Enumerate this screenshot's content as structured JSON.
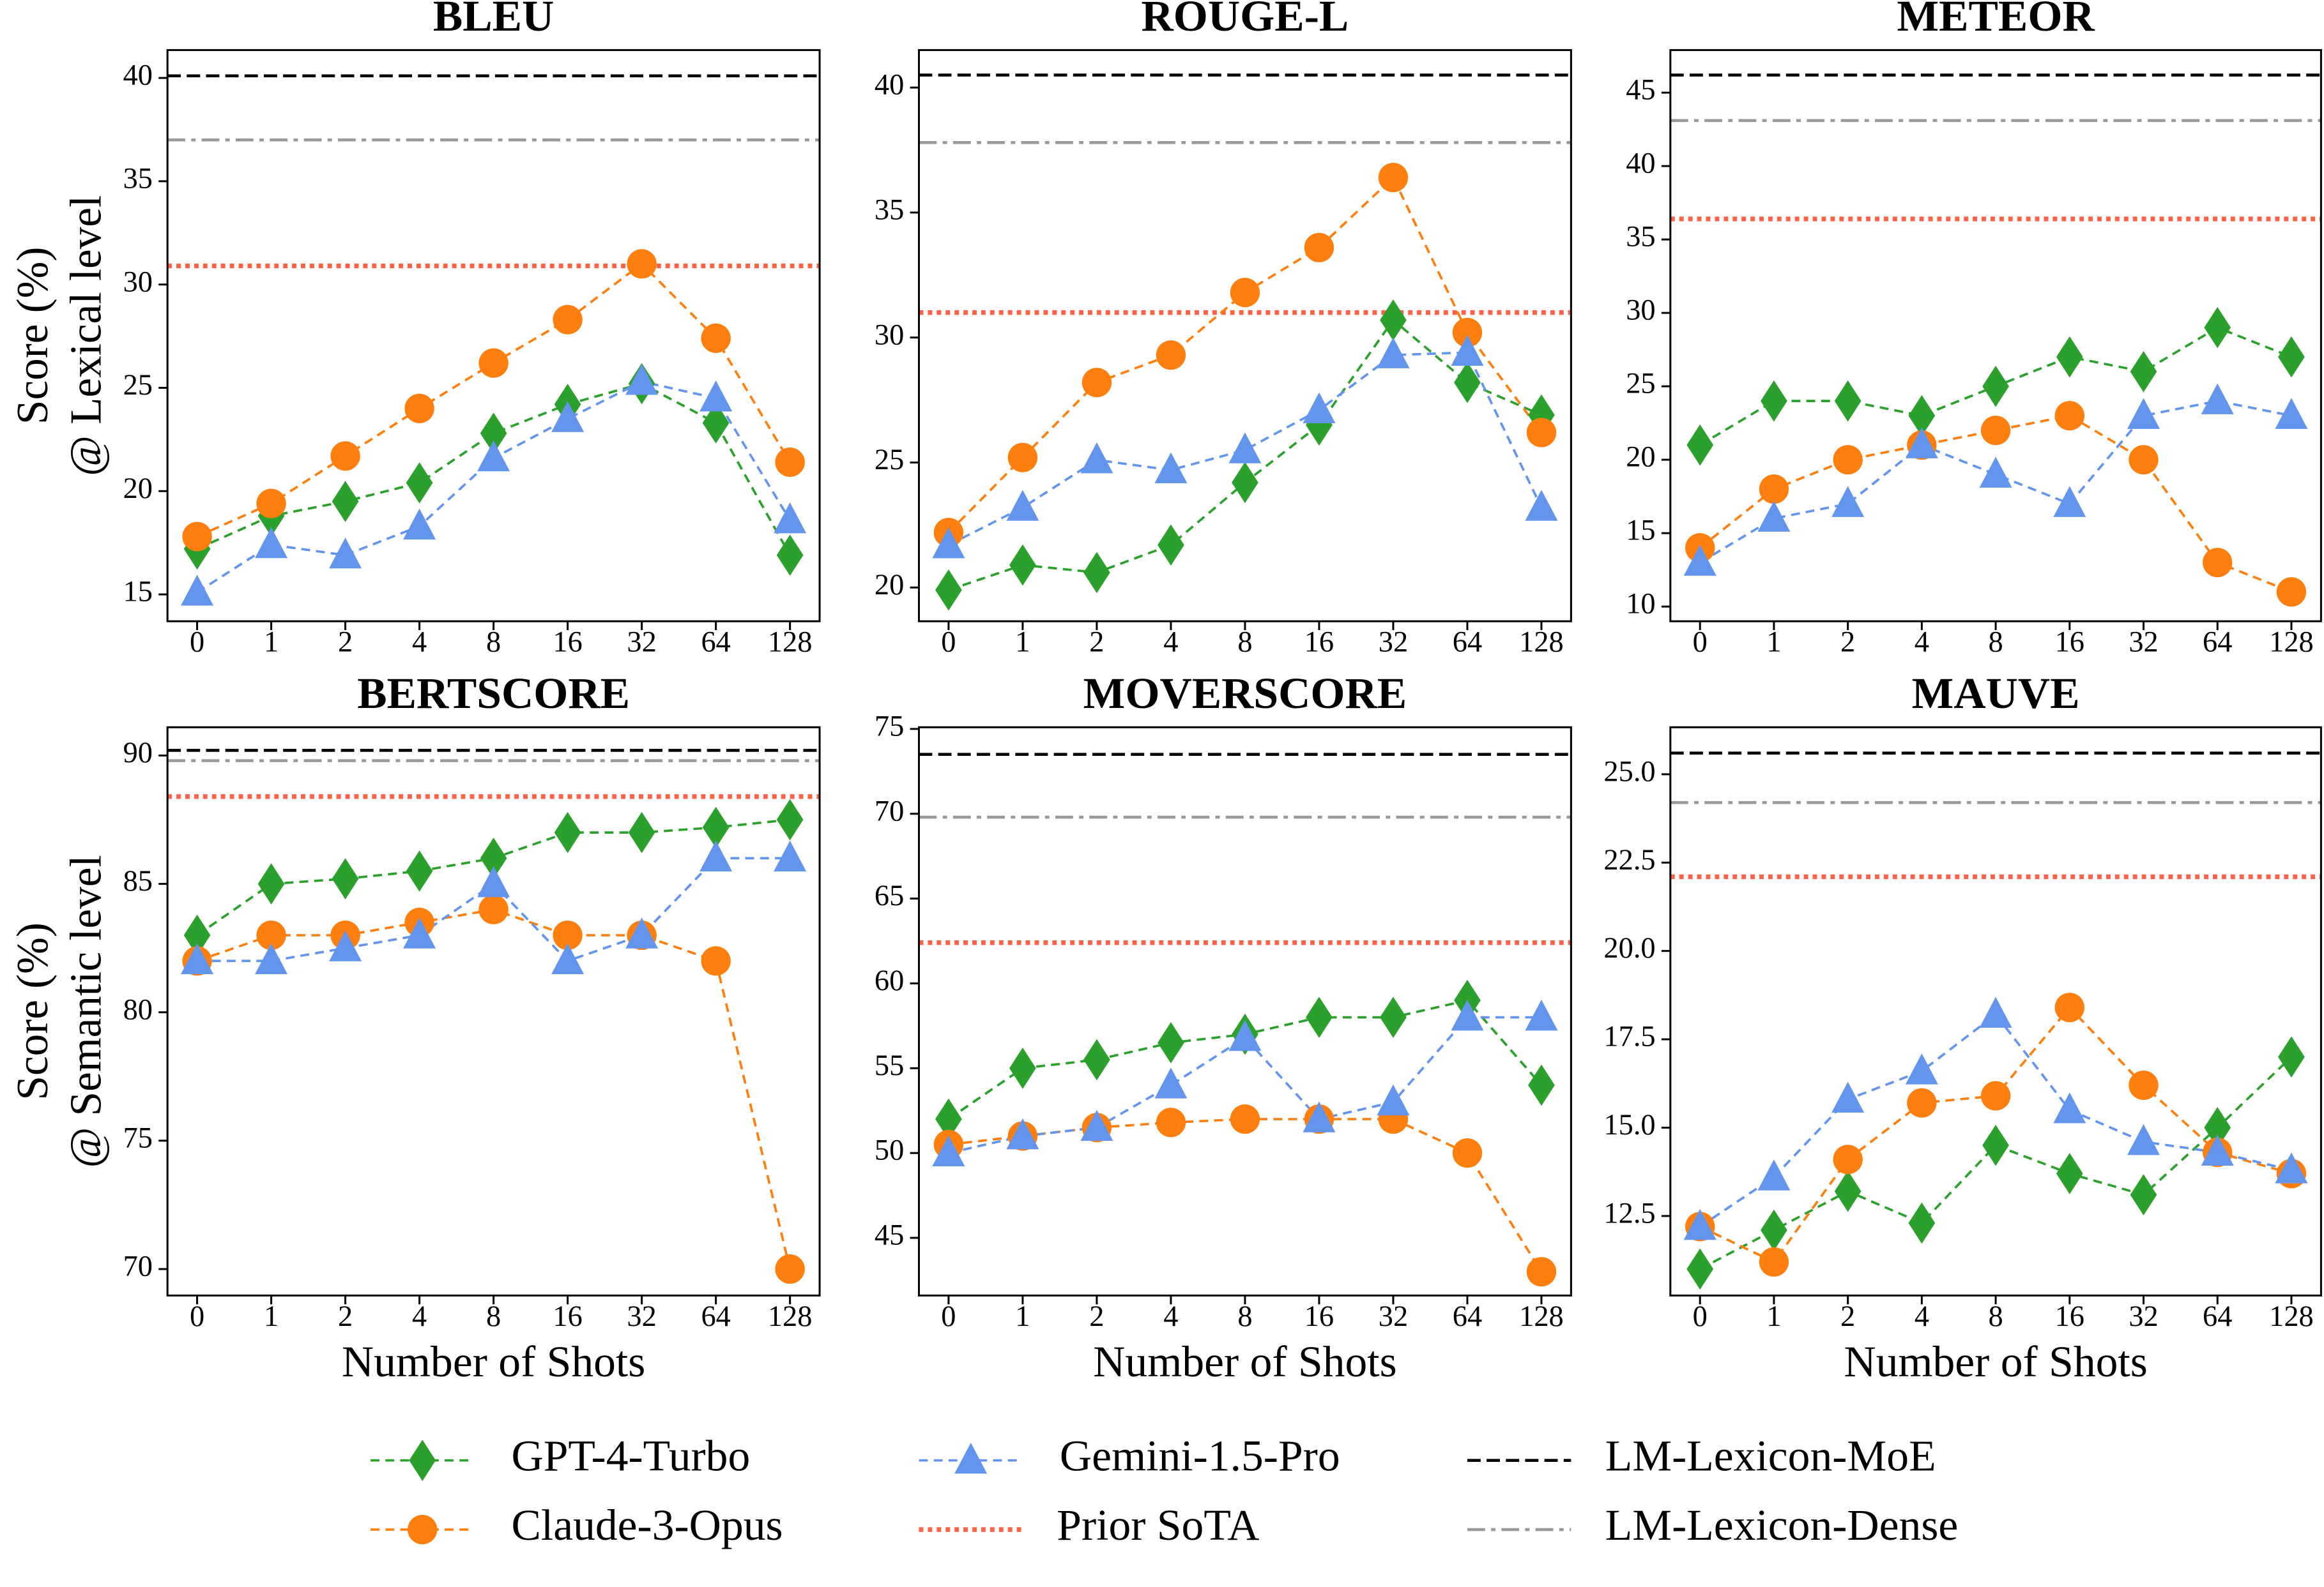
{
  "chart_data": [
    {
      "type": "line",
      "title": "BLEU",
      "y_label": [
        "Score (%)",
        "@ Lexical level"
      ],
      "categories": [
        "0",
        "1",
        "2",
        "4",
        "8",
        "16",
        "32",
        "64",
        "128"
      ],
      "ylim": [
        13.7,
        41.35
      ],
      "yticks": [
        15,
        20,
        25,
        30,
        35,
        40
      ],
      "series": [
        {
          "name": "GPT-4-Turbo",
          "color": "#2ca02c",
          "marker": "diamond",
          "values": [
            17.2,
            18.8,
            19.5,
            20.4,
            22.8,
            24.2,
            25.2,
            23.3,
            16.9
          ]
        },
        {
          "name": "Claude-3-Opus",
          "color": "#ff7f0e",
          "marker": "circle",
          "values": [
            17.8,
            19.4,
            21.7,
            24.0,
            26.2,
            28.3,
            31.0,
            27.4,
            21.4
          ]
        },
        {
          "name": "Gemini-1.5-Pro",
          "color": "#6495ed",
          "marker": "triangle",
          "values": [
            15.1,
            17.4,
            16.9,
            18.3,
            21.6,
            23.5,
            25.3,
            24.5,
            18.6
          ]
        }
      ],
      "reference_lines": [
        {
          "name": "Prior SoTA",
          "color": "#ff6347",
          "style": "dotted",
          "value": 30.9
        },
        {
          "name": "LM-Lexicon-MoE",
          "color": "#000000",
          "style": "dashed",
          "value": 40.1
        },
        {
          "name": "LM-Lexicon-Dense",
          "color": "#999999",
          "style": "dashdot",
          "value": 37.0
        }
      ]
    },
    {
      "type": "line",
      "title": "ROUGE-L",
      "categories": [
        "0",
        "1",
        "2",
        "4",
        "8",
        "16",
        "32",
        "64",
        "128"
      ],
      "ylim": [
        18.65,
        41.5
      ],
      "yticks": [
        20,
        25,
        30,
        35,
        40
      ],
      "series": [
        {
          "name": "GPT-4-Turbo",
          "color": "#2ca02c",
          "marker": "diamond",
          "values": [
            19.9,
            20.9,
            20.6,
            21.7,
            24.2,
            26.5,
            30.7,
            28.2,
            26.9
          ]
        },
        {
          "name": "Claude-3-Opus",
          "color": "#ff7f0e",
          "marker": "circle",
          "values": [
            22.2,
            25.2,
            28.2,
            29.3,
            31.8,
            33.6,
            36.4,
            30.2,
            26.2
          ]
        },
        {
          "name": "Gemini-1.5-Pro",
          "color": "#6495ed",
          "marker": "triangle",
          "values": [
            21.7,
            23.2,
            25.1,
            24.7,
            25.5,
            27.1,
            29.3,
            29.4,
            23.2
          ]
        }
      ],
      "reference_lines": [
        {
          "name": "Prior SoTA",
          "color": "#ff6347",
          "style": "dotted",
          "value": 31.0
        },
        {
          "name": "LM-Lexicon-MoE",
          "color": "#000000",
          "style": "dashed",
          "value": 40.5
        },
        {
          "name": "LM-Lexicon-Dense",
          "color": "#999999",
          "style": "dashdot",
          "value": 37.8
        }
      ]
    },
    {
      "type": "line",
      "title": "METEOR",
      "categories": [
        "0",
        "1",
        "2",
        "4",
        "8",
        "16",
        "32",
        "64",
        "128"
      ],
      "ylim": [
        9.0,
        47.9
      ],
      "yticks": [
        10,
        15,
        20,
        25,
        30,
        35,
        40,
        45
      ],
      "series": [
        {
          "name": "GPT-4-Turbo",
          "color": "#2ca02c",
          "marker": "diamond",
          "values": [
            21,
            24,
            24,
            23,
            25,
            27,
            26,
            29,
            27
          ]
        },
        {
          "name": "Claude-3-Opus",
          "color": "#ff7f0e",
          "marker": "circle",
          "values": [
            14,
            18,
            20,
            21,
            22,
            23,
            20,
            13,
            11
          ]
        },
        {
          "name": "Gemini-1.5-Pro",
          "color": "#6495ed",
          "marker": "triangle",
          "values": [
            13,
            16,
            17,
            21,
            19,
            17,
            23,
            24,
            23
          ]
        }
      ],
      "reference_lines": [
        {
          "name": "Prior SoTA",
          "color": "#ff6347",
          "style": "dotted",
          "value": 36.4
        },
        {
          "name": "LM-Lexicon-MoE",
          "color": "#000000",
          "style": "dashed",
          "value": 46.2
        },
        {
          "name": "LM-Lexicon-Dense",
          "color": "#999999",
          "style": "dashdot",
          "value": 43.1
        }
      ]
    },
    {
      "type": "line",
      "title": "BERTSCORE",
      "y_label": [
        "Score (%)",
        "@ Semantic level"
      ],
      "x_label": "Number of Shots",
      "categories": [
        "0",
        "1",
        "2",
        "4",
        "8",
        "16",
        "32",
        "64",
        "128"
      ],
      "ylim": [
        68.97,
        91.1
      ],
      "yticks": [
        70,
        75,
        80,
        85,
        90
      ],
      "series": [
        {
          "name": "GPT-4-Turbo",
          "color": "#2ca02c",
          "marker": "diamond",
          "values": [
            83,
            85,
            85.2,
            85.5,
            86,
            87,
            87,
            87.2,
            87.5
          ]
        },
        {
          "name": "Claude-3-Opus",
          "color": "#ff7f0e",
          "marker": "circle",
          "values": [
            82,
            83,
            83,
            83.5,
            84,
            83,
            83,
            82,
            70
          ]
        },
        {
          "name": "Gemini-1.5-Pro",
          "color": "#6495ed",
          "marker": "triangle",
          "values": [
            82,
            82,
            82.5,
            83,
            85,
            82,
            83,
            86,
            86
          ]
        }
      ],
      "reference_lines": [
        {
          "name": "Prior SoTA",
          "color": "#ff6347",
          "style": "dotted",
          "value": 88.4
        },
        {
          "name": "LM-Lexicon-MoE",
          "color": "#000000",
          "style": "dashed",
          "value": 90.2
        },
        {
          "name": "LM-Lexicon-Dense",
          "color": "#999999",
          "style": "dashdot",
          "value": 89.8
        }
      ]
    },
    {
      "type": "line",
      "title": "MOVERSCORE",
      "x_label": "Number of Shots",
      "categories": [
        "0",
        "1",
        "2",
        "4",
        "8",
        "16",
        "32",
        "64",
        "128"
      ],
      "ylim": [
        41.6,
        75.1
      ],
      "yticks": [
        45,
        50,
        55,
        60,
        65,
        70,
        75
      ],
      "series": [
        {
          "name": "GPT-4-Turbo",
          "color": "#2ca02c",
          "marker": "diamond",
          "values": [
            52,
            55,
            55.5,
            56.5,
            57,
            58,
            58,
            59,
            54
          ]
        },
        {
          "name": "Claude-3-Opus",
          "color": "#ff7f0e",
          "marker": "circle",
          "values": [
            50.5,
            51,
            51.5,
            51.8,
            52,
            52,
            52,
            50,
            43
          ]
        },
        {
          "name": "Gemini-1.5-Pro",
          "color": "#6495ed",
          "marker": "triangle",
          "values": [
            50,
            51,
            51.5,
            54,
            56.8,
            52,
            53,
            58,
            58
          ]
        }
      ],
      "reference_lines": [
        {
          "name": "Prior SoTA",
          "color": "#ff6347",
          "style": "dotted",
          "value": 62.4
        },
        {
          "name": "LM-Lexicon-MoE",
          "color": "#000000",
          "style": "dashed",
          "value": 73.5
        },
        {
          "name": "LM-Lexicon-Dense",
          "color": "#999999",
          "style": "dashdot",
          "value": 69.8
        }
      ]
    },
    {
      "type": "line",
      "title": "MAUVE",
      "x_label": "Number of Shots",
      "categories": [
        "0",
        "1",
        "2",
        "4",
        "8",
        "16",
        "32",
        "64",
        "128"
      ],
      "ylim": [
        10.25,
        26.33
      ],
      "yticks": [
        12.5,
        {
          "value": 15,
          "label": "15.0"
        },
        17.5,
        {
          "value": 20,
          "label": "20.0"
        },
        22.5,
        {
          "value": 25,
          "label": "25.0"
        }
      ],
      "series": [
        {
          "name": "GPT-4-Turbo",
          "color": "#2ca02c",
          "marker": "diamond",
          "values": [
            11.0,
            12.1,
            13.2,
            12.3,
            14.5,
            13.7,
            13.1,
            15.0,
            17.0
          ]
        },
        {
          "name": "Claude-3-Opus",
          "color": "#ff7f0e",
          "marker": "circle",
          "values": [
            12.2,
            11.2,
            14.1,
            15.7,
            15.9,
            18.4,
            16.2,
            14.3,
            13.7
          ]
        },
        {
          "name": "Gemini-1.5-Pro",
          "color": "#6495ed",
          "marker": "triangle",
          "values": [
            12.2,
            13.6,
            15.8,
            16.6,
            18.2,
            15.5,
            14.6,
            14.3,
            13.8
          ]
        }
      ],
      "reference_lines": [
        {
          "name": "Prior SoTA",
          "color": "#ff6347",
          "style": "dotted",
          "value": 22.1
        },
        {
          "name": "LM-Lexicon-MoE",
          "color": "#000000",
          "style": "dashed",
          "value": 25.6
        },
        {
          "name": "LM-Lexicon-Dense",
          "color": "#999999",
          "style": "dashdot",
          "value": 24.2
        }
      ]
    }
  ]
}
